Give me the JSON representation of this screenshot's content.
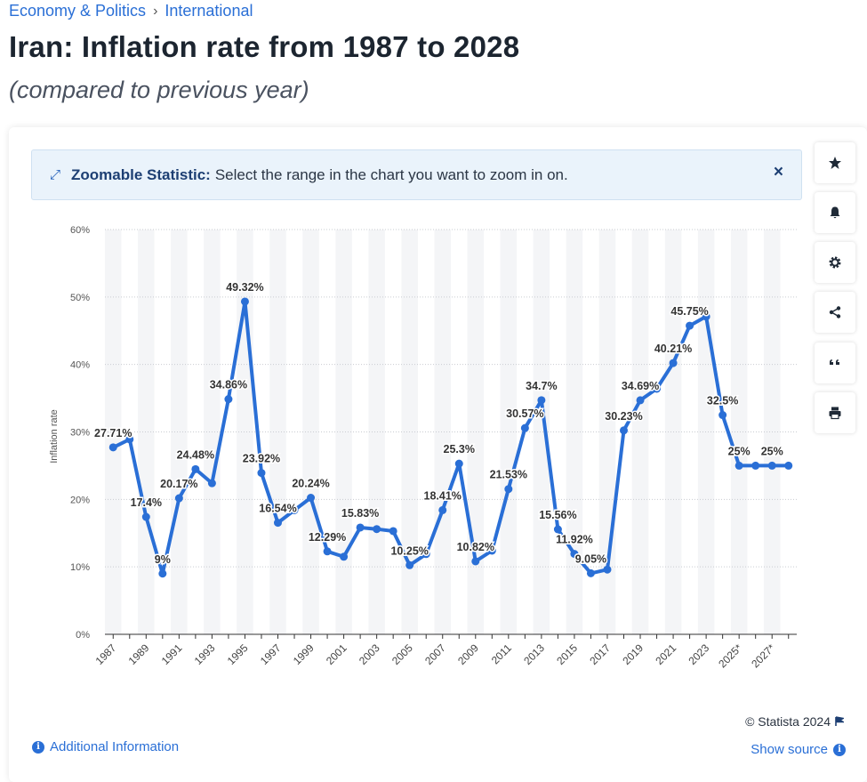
{
  "breadcrumb": {
    "category": "Economy & Politics",
    "separator": "›",
    "subcategory": "International"
  },
  "header": {
    "title": "Iran: Inflation rate from 1987 to 2028",
    "subtitle": "(compared to previous year)"
  },
  "zoom_banner": {
    "label": "Zoomable Statistic:",
    "text": "Select the range in the chart you want to zoom in on.",
    "close": "×"
  },
  "sidebar": {
    "icons": [
      "star-icon",
      "bell-icon",
      "gear-icon",
      "share-icon",
      "quote-icon",
      "print-icon"
    ]
  },
  "footer": {
    "additional_info": "Additional Information",
    "copyright": "© Statista 2024",
    "show_source": "Show source"
  },
  "colors": {
    "line": "#2a6fd6",
    "link": "#2a6fd6",
    "band": "#f4f5f7"
  },
  "chart_data": {
    "type": "line",
    "title": "",
    "ylabel": "Inflation rate",
    "xlabel": "",
    "ylim": [
      0,
      60
    ],
    "yticks": [
      "0%",
      "10%",
      "20%",
      "30%",
      "40%",
      "50%",
      "60%"
    ],
    "x": [
      "1987",
      "1988",
      "1989",
      "1990",
      "1991",
      "1992",
      "1993",
      "1994",
      "1995",
      "1996",
      "1997",
      "1998",
      "1999",
      "2000",
      "2001",
      "2002",
      "2003",
      "2004",
      "2005",
      "2006",
      "2007",
      "2008",
      "2009",
      "2010",
      "2011",
      "2012",
      "2013",
      "2014",
      "2015",
      "2016",
      "2017",
      "2018",
      "2019",
      "2020",
      "2021",
      "2022",
      "2023",
      "2024",
      "2025*",
      "2026*",
      "2027*",
      "2028*"
    ],
    "xtick_labels": [
      "1987",
      "1989",
      "1991",
      "1993",
      "1995",
      "1997",
      "1999",
      "2001",
      "2003",
      "2005",
      "2007",
      "2009",
      "2011",
      "2013",
      "2015",
      "2017",
      "2019",
      "2021",
      "2023",
      "2025*",
      "2027*"
    ],
    "values": [
      27.71,
      28.9,
      17.4,
      9,
      20.17,
      24.48,
      22.4,
      34.86,
      49.32,
      23.92,
      16.54,
      18.4,
      20.24,
      12.29,
      11.5,
      15.83,
      15.6,
      15.3,
      10.25,
      11.9,
      18.41,
      25.3,
      10.82,
      12.4,
      21.53,
      30.57,
      34.7,
      15.56,
      11.92,
      9.05,
      9.6,
      30.23,
      34.69,
      36.4,
      40.21,
      45.75,
      47.1,
      32.5,
      25,
      25,
      25,
      25
    ],
    "data_labels": [
      "27.71%",
      "",
      "17.4%",
      "9%",
      "20.17%",
      "24.48%",
      "",
      "34.86%",
      "49.32%",
      "23.92%",
      "16.54%",
      "",
      "20.24%",
      "12.29%",
      "",
      "15.83%",
      "",
      "",
      "10.25%",
      "",
      "18.41%",
      "25.3%",
      "10.82%",
      "",
      "21.53%",
      "30.57%",
      "34.7%",
      "15.56%",
      "11.92%",
      "9.05%",
      "",
      "30.23%",
      "34.69%",
      "",
      "40.21%",
      "45.75%",
      "",
      "32.5%",
      "25%",
      "",
      "25%",
      ""
    ],
    "grid": true,
    "legend": "none"
  }
}
